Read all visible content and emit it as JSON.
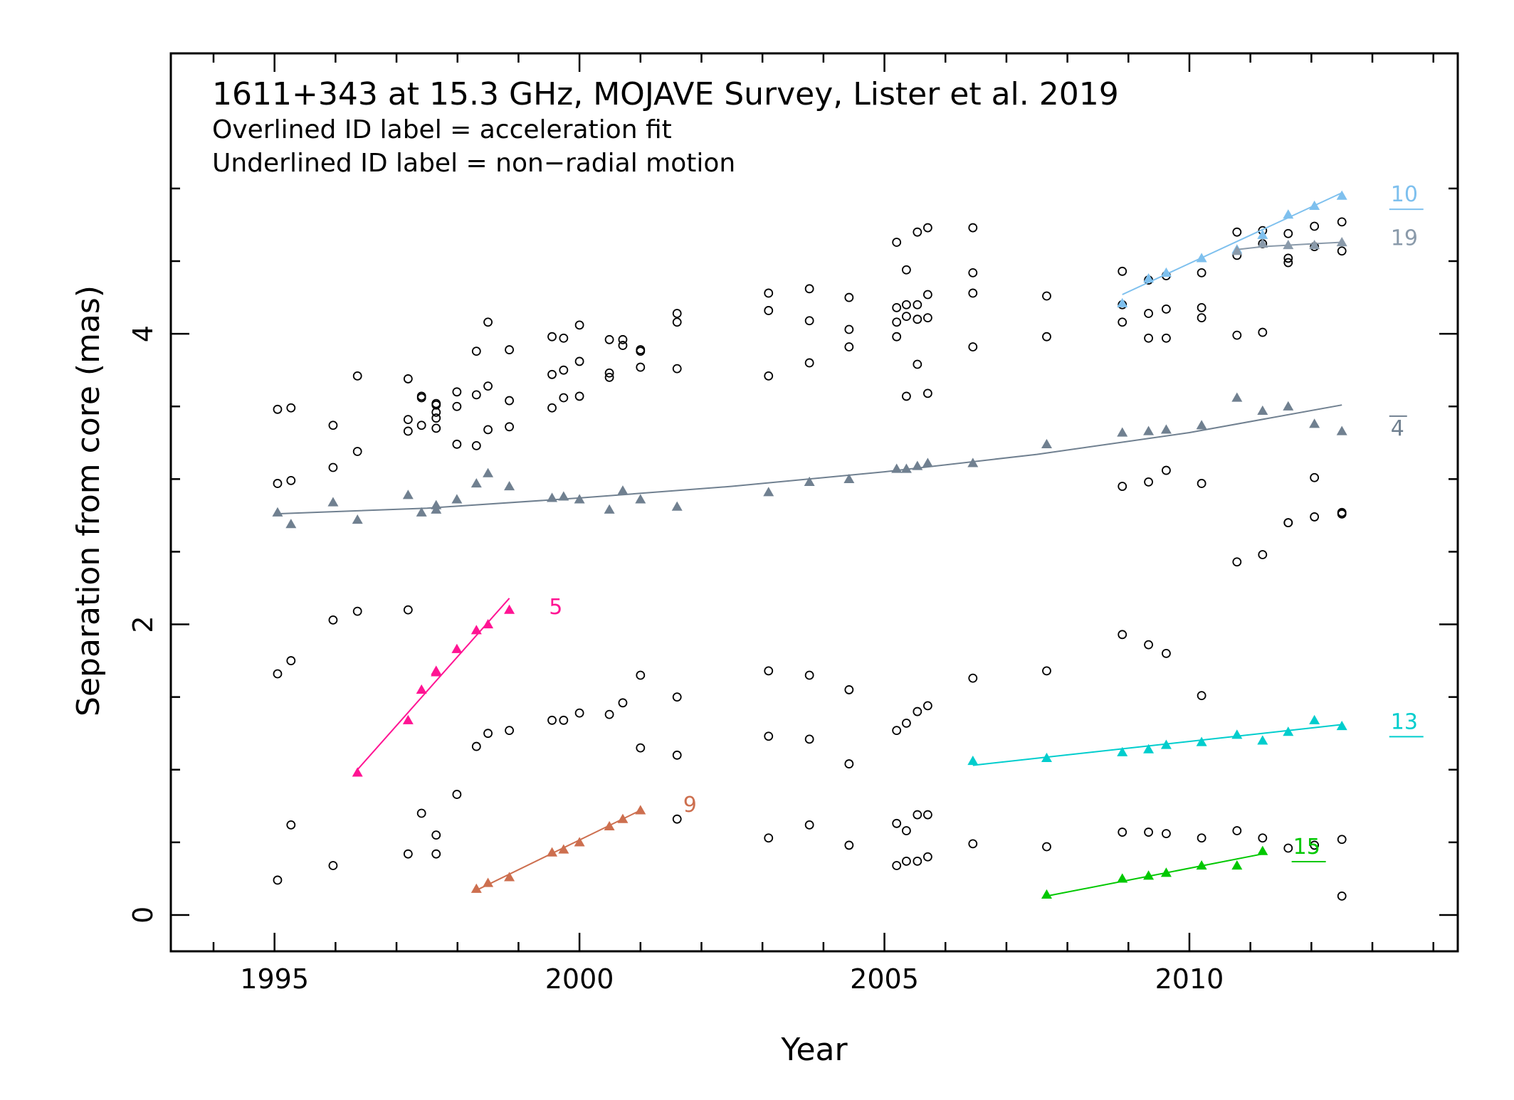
{
  "title": "1611+343 at 15.3 GHz, MOJAVE Survey, Lister et al. 2019",
  "notes": [
    "Overlined ID label = acceleration fit",
    "Underlined ID label = non−radial motion"
  ],
  "chart_data": {
    "type": "scatter",
    "title": "1611+343 at 15.3 GHz, MOJAVE Survey, Lister et al. 2019",
    "xlabel": "Year",
    "ylabel": "Separation from core (mas)",
    "xlim": [
      1993.3,
      2014.4
    ],
    "ylim": [
      -0.25,
      5.93
    ],
    "x_ticks": [
      1995,
      2000,
      2005,
      2010
    ],
    "y_ticks": [
      0,
      2,
      4
    ],
    "grid": false,
    "unassigned_components": {
      "marker": "open-circle",
      "points": [
        [
          1995.05,
          3.48
        ],
        [
          1995.05,
          2.97
        ],
        [
          1995.05,
          1.66
        ],
        [
          1995.05,
          0.24
        ],
        [
          1995.27,
          3.49
        ],
        [
          1995.27,
          2.99
        ],
        [
          1995.27,
          1.75
        ],
        [
          1995.27,
          0.62
        ],
        [
          1995.96,
          3.37
        ],
        [
          1995.96,
          3.08
        ],
        [
          1995.96,
          2.03
        ],
        [
          1995.96,
          0.34
        ],
        [
          1996.36,
          3.71
        ],
        [
          1996.36,
          3.19
        ],
        [
          1996.36,
          2.09
        ],
        [
          1997.19,
          3.69
        ],
        [
          1997.19,
          3.41
        ],
        [
          1997.19,
          3.33
        ],
        [
          1997.19,
          2.1
        ],
        [
          1997.19,
          0.42
        ],
        [
          1997.41,
          3.57
        ],
        [
          1997.41,
          3.56
        ],
        [
          1997.41,
          3.37
        ],
        [
          1997.41,
          0.7
        ],
        [
          1997.65,
          3.52
        ],
        [
          1997.65,
          3.51
        ],
        [
          1997.65,
          3.46
        ],
        [
          1997.65,
          3.42
        ],
        [
          1997.65,
          3.35
        ],
        [
          1997.65,
          0.55
        ],
        [
          1997.65,
          0.42
        ],
        [
          1997.99,
          3.6
        ],
        [
          1997.99,
          3.5
        ],
        [
          1997.99,
          3.24
        ],
        [
          1997.99,
          0.83
        ],
        [
          1998.31,
          3.88
        ],
        [
          1998.31,
          3.58
        ],
        [
          1998.31,
          3.23
        ],
        [
          1998.31,
          1.16
        ],
        [
          1998.5,
          4.08
        ],
        [
          1998.5,
          3.64
        ],
        [
          1998.5,
          3.34
        ],
        [
          1998.5,
          1.25
        ],
        [
          1998.85,
          3.89
        ],
        [
          1998.85,
          3.54
        ],
        [
          1998.85,
          3.36
        ],
        [
          1998.85,
          1.27
        ],
        [
          1999.55,
          3.98
        ],
        [
          1999.55,
          3.72
        ],
        [
          1999.55,
          3.49
        ],
        [
          1999.55,
          1.34
        ],
        [
          1999.74,
          3.97
        ],
        [
          1999.74,
          3.75
        ],
        [
          1999.74,
          3.56
        ],
        [
          1999.74,
          1.34
        ],
        [
          2000.0,
          4.06
        ],
        [
          2000.0,
          3.81
        ],
        [
          2000.0,
          3.57
        ],
        [
          2000.0,
          1.39
        ],
        [
          2000.49,
          3.96
        ],
        [
          2000.49,
          3.73
        ],
        [
          2000.49,
          3.7
        ],
        [
          2000.49,
          1.38
        ],
        [
          2000.71,
          3.96
        ],
        [
          2000.71,
          3.92
        ],
        [
          2000.71,
          1.46
        ],
        [
          2001.0,
          3.89
        ],
        [
          2001.0,
          3.88
        ],
        [
          2001.0,
          3.77
        ],
        [
          2001.0,
          1.65
        ],
        [
          2001.0,
          1.15
        ],
        [
          2001.6,
          4.14
        ],
        [
          2001.6,
          4.08
        ],
        [
          2001.6,
          3.76
        ],
        [
          2001.6,
          1.5
        ],
        [
          2001.6,
          1.1
        ],
        [
          2001.6,
          0.66
        ],
        [
          2003.1,
          4.28
        ],
        [
          2003.1,
          4.16
        ],
        [
          2003.1,
          3.71
        ],
        [
          2003.1,
          1.68
        ],
        [
          2003.1,
          1.23
        ],
        [
          2003.1,
          0.53
        ],
        [
          2003.77,
          4.31
        ],
        [
          2003.77,
          4.09
        ],
        [
          2003.77,
          3.8
        ],
        [
          2003.77,
          1.65
        ],
        [
          2003.77,
          1.21
        ],
        [
          2003.77,
          0.62
        ],
        [
          2004.42,
          4.25
        ],
        [
          2004.42,
          4.03
        ],
        [
          2004.42,
          3.91
        ],
        [
          2004.42,
          1.55
        ],
        [
          2004.42,
          1.04
        ],
        [
          2004.42,
          0.48
        ],
        [
          2005.2,
          4.63
        ],
        [
          2005.2,
          4.18
        ],
        [
          2005.2,
          4.08
        ],
        [
          2005.2,
          3.98
        ],
        [
          2005.2,
          1.27
        ],
        [
          2005.2,
          0.63
        ],
        [
          2005.2,
          0.34
        ],
        [
          2005.36,
          4.44
        ],
        [
          2005.36,
          4.2
        ],
        [
          2005.36,
          4.12
        ],
        [
          2005.36,
          3.57
        ],
        [
          2005.36,
          1.32
        ],
        [
          2005.36,
          0.58
        ],
        [
          2005.36,
          0.37
        ],
        [
          2005.54,
          4.7
        ],
        [
          2005.54,
          4.2
        ],
        [
          2005.54,
          4.1
        ],
        [
          2005.54,
          3.79
        ],
        [
          2005.54,
          1.4
        ],
        [
          2005.54,
          0.69
        ],
        [
          2005.54,
          0.37
        ],
        [
          2005.71,
          4.73
        ],
        [
          2005.71,
          4.27
        ],
        [
          2005.71,
          4.11
        ],
        [
          2005.71,
          3.59
        ],
        [
          2005.71,
          1.44
        ],
        [
          2005.71,
          0.69
        ],
        [
          2005.71,
          0.4
        ],
        [
          2006.45,
          4.73
        ],
        [
          2006.45,
          4.42
        ],
        [
          2006.45,
          4.28
        ],
        [
          2006.45,
          3.91
        ],
        [
          2006.45,
          1.63
        ],
        [
          2006.45,
          0.49
        ],
        [
          2007.66,
          4.26
        ],
        [
          2007.66,
          3.98
        ],
        [
          2007.66,
          1.68
        ],
        [
          2007.66,
          0.47
        ],
        [
          2008.9,
          4.43
        ],
        [
          2008.9,
          4.2
        ],
        [
          2008.9,
          4.08
        ],
        [
          2008.9,
          2.95
        ],
        [
          2008.9,
          1.93
        ],
        [
          2008.9,
          0.57
        ],
        [
          2009.33,
          4.37
        ],
        [
          2009.33,
          4.14
        ],
        [
          2009.33,
          3.97
        ],
        [
          2009.33,
          2.98
        ],
        [
          2009.33,
          1.86
        ],
        [
          2009.33,
          0.57
        ],
        [
          2009.62,
          4.4
        ],
        [
          2009.62,
          4.17
        ],
        [
          2009.62,
          3.97
        ],
        [
          2009.62,
          3.06
        ],
        [
          2009.62,
          1.8
        ],
        [
          2009.62,
          0.56
        ],
        [
          2010.2,
          4.42
        ],
        [
          2010.2,
          4.18
        ],
        [
          2010.2,
          4.11
        ],
        [
          2010.2,
          2.97
        ],
        [
          2010.2,
          1.51
        ],
        [
          2010.2,
          0.53
        ],
        [
          2010.78,
          4.7
        ],
        [
          2010.78,
          4.54
        ],
        [
          2010.78,
          3.99
        ],
        [
          2010.78,
          2.43
        ],
        [
          2010.78,
          0.58
        ],
        [
          2011.2,
          4.71
        ],
        [
          2011.2,
          4.62
        ],
        [
          2011.2,
          4.01
        ],
        [
          2011.2,
          2.48
        ],
        [
          2011.2,
          0.53
        ],
        [
          2011.62,
          4.69
        ],
        [
          2011.62,
          4.52
        ],
        [
          2011.62,
          4.49
        ],
        [
          2011.62,
          2.7
        ],
        [
          2011.62,
          2.7
        ],
        [
          2011.62,
          0.46
        ],
        [
          2012.05,
          4.74
        ],
        [
          2012.05,
          4.6
        ],
        [
          2012.05,
          3.01
        ],
        [
          2012.05,
          2.74
        ],
        [
          2012.05,
          0.48
        ],
        [
          2012.5,
          4.77
        ],
        [
          2012.5,
          4.57
        ],
        [
          2012.5,
          2.77
        ],
        [
          2012.5,
          2.76
        ],
        [
          2012.5,
          0.52
        ],
        [
          2012.5,
          0.13
        ]
      ]
    },
    "series": [
      {
        "name": "4",
        "color": "#708090",
        "label_decoration": "overline",
        "marker": "filled-triangle",
        "fit": "acceleration",
        "points": [
          [
            1995.05,
            2.77
          ],
          [
            1995.27,
            2.69
          ],
          [
            1995.96,
            2.84
          ],
          [
            1996.36,
            2.72
          ],
          [
            1997.19,
            2.89
          ],
          [
            1997.41,
            2.77
          ],
          [
            1997.65,
            2.79
          ],
          [
            1997.65,
            2.82
          ],
          [
            1997.99,
            2.86
          ],
          [
            1998.31,
            2.97
          ],
          [
            1998.5,
            3.04
          ],
          [
            1998.85,
            2.95
          ],
          [
            1999.55,
            2.87
          ],
          [
            1999.74,
            2.88
          ],
          [
            2000.0,
            2.86
          ],
          [
            2000.49,
            2.79
          ],
          [
            2000.71,
            2.92
          ],
          [
            2001.0,
            2.86
          ],
          [
            2001.6,
            2.81
          ],
          [
            2003.1,
            2.91
          ],
          [
            2003.77,
            2.98
          ],
          [
            2004.42,
            3.0
          ],
          [
            2005.2,
            3.07
          ],
          [
            2005.36,
            3.07
          ],
          [
            2005.54,
            3.09
          ],
          [
            2005.71,
            3.11
          ],
          [
            2006.45,
            3.11
          ],
          [
            2007.66,
            3.24
          ],
          [
            2008.9,
            3.32
          ],
          [
            2009.33,
            3.33
          ],
          [
            2009.62,
            3.34
          ],
          [
            2010.2,
            3.37
          ],
          [
            2010.78,
            3.56
          ],
          [
            2011.2,
            3.47
          ],
          [
            2011.62,
            3.5
          ],
          [
            2012.05,
            3.38
          ],
          [
            2012.5,
            3.33
          ]
        ],
        "fit_line": [
          [
            1995.0,
            2.76
          ],
          [
            1997.5,
            2.8
          ],
          [
            2000.0,
            2.87
          ],
          [
            2002.5,
            2.95
          ],
          [
            2005.0,
            3.05
          ],
          [
            2007.5,
            3.17
          ],
          [
            2010.0,
            3.32
          ],
          [
            2012.5,
            3.51
          ]
        ]
      },
      {
        "name": "5",
        "color": "#ff1493",
        "label_decoration": "none",
        "marker": "filled-triangle",
        "points": [
          [
            1996.36,
            0.98
          ],
          [
            1997.19,
            1.34
          ],
          [
            1997.41,
            1.55
          ],
          [
            1997.65,
            1.67
          ],
          [
            1997.65,
            1.68
          ],
          [
            1997.99,
            1.83
          ],
          [
            1998.31,
            1.96
          ],
          [
            1998.5,
            2.0
          ],
          [
            1998.85,
            2.1
          ]
        ],
        "fit_line": [
          [
            1996.36,
            1.0
          ],
          [
            1998.85,
            2.18
          ]
        ]
      },
      {
        "name": "9",
        "color": "#cd6f4f",
        "label_decoration": "none",
        "marker": "filled-triangle",
        "points": [
          [
            1998.31,
            0.18
          ],
          [
            1998.5,
            0.22
          ],
          [
            1998.85,
            0.26
          ],
          [
            1999.55,
            0.43
          ],
          [
            1999.74,
            0.45
          ],
          [
            2000.0,
            0.5
          ],
          [
            2000.49,
            0.61
          ],
          [
            2000.71,
            0.66
          ],
          [
            2001.0,
            0.72
          ]
        ],
        "fit_line": [
          [
            1998.31,
            0.17
          ],
          [
            2001.0,
            0.72
          ]
        ]
      },
      {
        "name": "10",
        "color": "#7ec0ee",
        "label_decoration": "underline",
        "marker": "filled-triangle",
        "points": [
          [
            2008.9,
            4.21
          ],
          [
            2009.33,
            4.38
          ],
          [
            2009.62,
            4.42
          ],
          [
            2010.2,
            4.52
          ],
          [
            2010.78,
            4.58
          ],
          [
            2011.2,
            4.68
          ],
          [
            2011.62,
            4.82
          ],
          [
            2012.05,
            4.88
          ],
          [
            2012.5,
            4.95
          ]
        ],
        "fit_line": [
          [
            2008.9,
            4.27
          ],
          [
            2012.5,
            4.97
          ]
        ]
      },
      {
        "name": "13",
        "color": "#00cdcd",
        "label_decoration": "underline",
        "marker": "filled-triangle",
        "points": [
          [
            2006.45,
            1.06
          ],
          [
            2007.66,
            1.08
          ],
          [
            2008.9,
            1.12
          ],
          [
            2009.33,
            1.14
          ],
          [
            2009.62,
            1.17
          ],
          [
            2010.2,
            1.19
          ],
          [
            2010.78,
            1.24
          ],
          [
            2011.2,
            1.2
          ],
          [
            2011.62,
            1.26
          ],
          [
            2012.05,
            1.34
          ],
          [
            2012.5,
            1.3
          ]
        ],
        "fit_line": [
          [
            2006.45,
            1.03
          ],
          [
            2012.5,
            1.31
          ]
        ]
      },
      {
        "name": "15",
        "color": "#00c800",
        "label_decoration": "underline",
        "marker": "filled-triangle",
        "points": [
          [
            2007.66,
            0.14
          ],
          [
            2008.9,
            0.25
          ],
          [
            2009.33,
            0.27
          ],
          [
            2009.62,
            0.29
          ],
          [
            2010.2,
            0.34
          ],
          [
            2010.78,
            0.34
          ],
          [
            2011.2,
            0.44
          ]
        ],
        "fit_line": [
          [
            2007.66,
            0.13
          ],
          [
            2011.2,
            0.42
          ]
        ]
      },
      {
        "name": "19",
        "color": "#8a9aaa",
        "label_decoration": "none",
        "marker": "filled-triangle",
        "points": [
          [
            2010.78,
            4.57
          ],
          [
            2011.2,
            4.62
          ],
          [
            2011.62,
            4.61
          ],
          [
            2012.05,
            4.61
          ],
          [
            2012.5,
            4.63
          ]
        ],
        "fit_line": [
          [
            2010.78,
            4.58
          ],
          [
            2011.2,
            4.6
          ],
          [
            2011.62,
            4.61
          ],
          [
            2012.05,
            4.62
          ],
          [
            2012.5,
            4.63
          ]
        ]
      }
    ],
    "series_labels": [
      {
        "series": "10",
        "x": 2013.3,
        "y": 4.96
      },
      {
        "series": "19",
        "x": 2013.3,
        "y": 4.66
      },
      {
        "series": "4",
        "x": 2013.3,
        "y": 3.35
      },
      {
        "series": "5",
        "x": 1999.5,
        "y": 2.12
      },
      {
        "series": "9",
        "x": 2001.7,
        "y": 0.76
      },
      {
        "series": "13",
        "x": 2013.3,
        "y": 1.33
      },
      {
        "series": "15",
        "x": 2011.7,
        "y": 0.47
      }
    ]
  }
}
